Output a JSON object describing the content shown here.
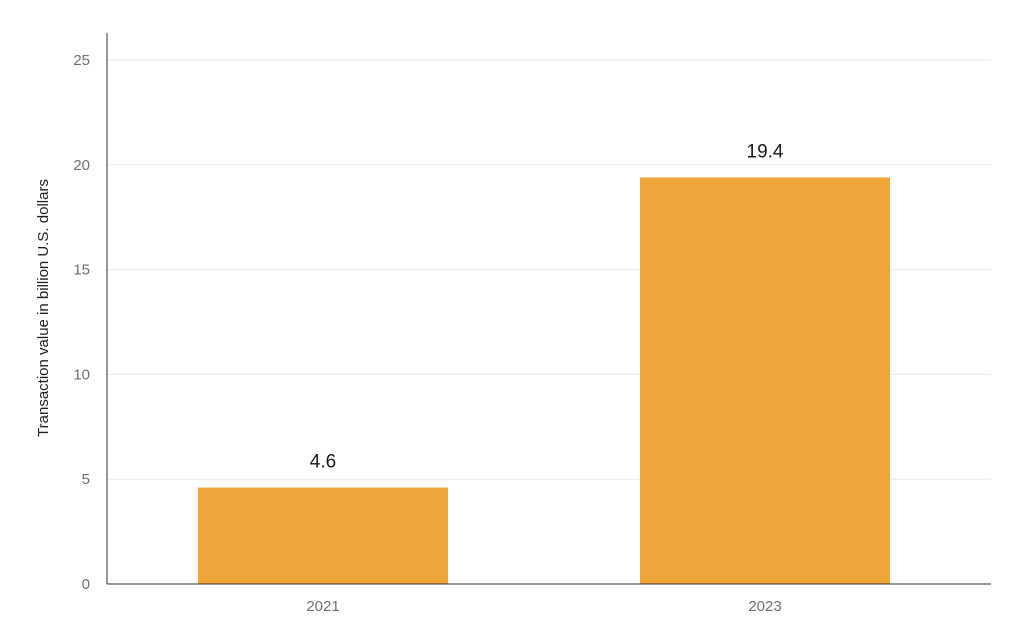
{
  "chart_data": {
    "type": "bar",
    "categories": [
      "2021",
      "2023"
    ],
    "values": [
      4.6,
      19.4
    ],
    "value_labels": [
      "4.6",
      "19.4"
    ],
    "title": "",
    "xlabel": "",
    "ylabel": "Transaction value in billion U.S. dollars",
    "ylim": [
      0,
      25
    ],
    "yticks": [
      0,
      5,
      10,
      15,
      20,
      25
    ],
    "ytick_labels": [
      "0",
      "5",
      "10",
      "15",
      "20",
      "25"
    ],
    "grid": true,
    "legend": "none",
    "bar_color": "#f0a53b"
  }
}
